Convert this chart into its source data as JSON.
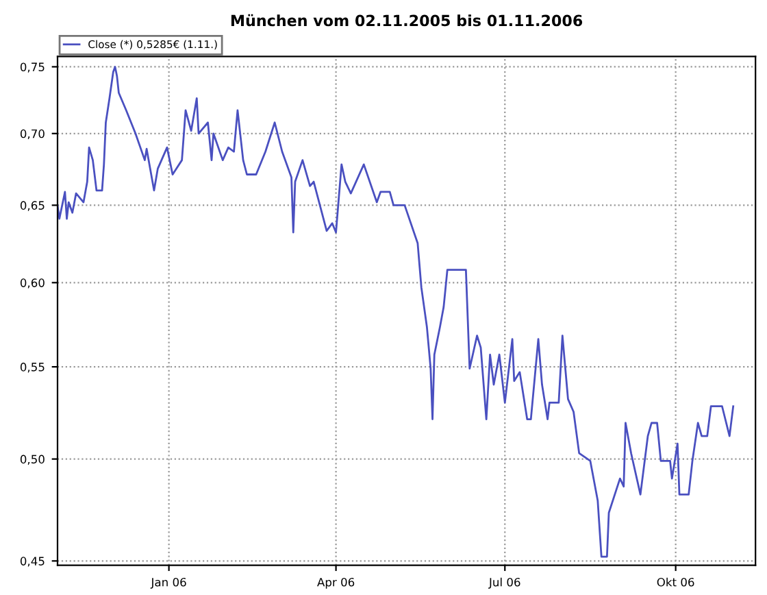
{
  "chart_data": {
    "type": "line",
    "title": "München vom 02.11.2005 bis 01.11.2006",
    "x": [
      "2005-11-02",
      "2005-11-03",
      "2005-11-06",
      "2005-11-07",
      "2005-11-08",
      "2005-11-10",
      "2005-11-12",
      "2005-11-16",
      "2005-11-18",
      "2005-11-19",
      "2005-11-21",
      "2005-11-23",
      "2005-11-26",
      "2005-11-27",
      "2005-11-28",
      "2005-11-30",
      "2005-12-02",
      "2005-12-03",
      "2005-12-04",
      "2005-12-05",
      "2005-12-09",
      "2005-12-14",
      "2005-12-19",
      "2005-12-20",
      "2005-12-24",
      "2005-12-26",
      "2005-12-31",
      "2006-01-03",
      "2006-01-08",
      "2006-01-10",
      "2006-01-13",
      "2006-01-16",
      "2006-01-17",
      "2006-01-22",
      "2006-01-24",
      "2006-01-25",
      "2006-01-30",
      "2006-02-02",
      "2006-02-05",
      "2006-02-07",
      "2006-02-10",
      "2006-02-12",
      "2006-02-17",
      "2006-02-22",
      "2006-02-27",
      "2006-03-03",
      "2006-03-08",
      "2006-03-09",
      "2006-03-10",
      "2006-03-14",
      "2006-03-18",
      "2006-03-20",
      "2006-03-27",
      "2006-03-30",
      "2006-04-01",
      "2006-04-04",
      "2006-04-06",
      "2006-04-09",
      "2006-04-16",
      "2006-04-23",
      "2006-04-25",
      "2006-04-30",
      "2006-05-02",
      "2006-05-08",
      "2006-05-15",
      "2006-05-17",
      "2006-05-20",
      "2006-05-22",
      "2006-05-23",
      "2006-05-24",
      "2006-05-27",
      "2006-05-29",
      "2006-05-31",
      "2006-06-10",
      "2006-06-12",
      "2006-06-16",
      "2006-06-18",
      "2006-06-21",
      "2006-06-23",
      "2006-06-25",
      "2006-06-28",
      "2006-07-01",
      "2006-07-05",
      "2006-07-06",
      "2006-07-09",
      "2006-07-13",
      "2006-07-15",
      "2006-07-19",
      "2006-07-21",
      "2006-07-24",
      "2006-07-25",
      "2006-07-30",
      "2006-08-01",
      "2006-08-04",
      "2006-08-07",
      "2006-08-10",
      "2006-08-16",
      "2006-08-20",
      "2006-08-22",
      "2006-08-25",
      "2006-08-26",
      "2006-09-01",
      "2006-09-03",
      "2006-09-04",
      "2006-09-07",
      "2006-09-12",
      "2006-09-16",
      "2006-09-18",
      "2006-09-21",
      "2006-09-23",
      "2006-09-28",
      "2006-09-29",
      "2006-10-02",
      "2006-10-03",
      "2006-10-08",
      "2006-10-10",
      "2006-10-13",
      "2006-10-15",
      "2006-10-18",
      "2006-10-20",
      "2006-10-26",
      "2006-10-30",
      "2006-11-01"
    ],
    "series": [
      {
        "name": "Close (*) 0,5285€ (1.11.)",
        "color": "#4a50c0",
        "values": [
          0.65,
          0.641,
          0.659,
          0.641,
          0.652,
          0.645,
          0.658,
          0.652,
          0.666,
          0.69,
          0.681,
          0.66,
          0.66,
          0.678,
          0.708,
          0.726,
          0.746,
          0.75,
          0.743,
          0.73,
          0.717,
          0.7,
          0.681,
          0.689,
          0.66,
          0.675,
          0.69,
          0.671,
          0.681,
          0.717,
          0.702,
          0.726,
          0.7,
          0.708,
          0.681,
          0.7,
          0.681,
          0.69,
          0.687,
          0.717,
          0.681,
          0.671,
          0.671,
          0.687,
          0.708,
          0.687,
          0.669,
          0.632,
          0.666,
          0.681,
          0.663,
          0.666,
          0.633,
          0.638,
          0.632,
          0.678,
          0.666,
          0.658,
          0.678,
          0.652,
          0.659,
          0.659,
          0.65,
          0.65,
          0.625,
          0.597,
          0.573,
          0.549,
          0.521,
          0.557,
          0.573,
          0.585,
          0.608,
          0.608,
          0.549,
          0.568,
          0.561,
          0.521,
          0.557,
          0.54,
          0.557,
          0.53,
          0.566,
          0.542,
          0.547,
          0.521,
          0.521,
          0.566,
          0.54,
          0.521,
          0.53,
          0.53,
          0.568,
          0.532,
          0.525,
          0.503,
          0.499,
          0.479,
          0.452,
          0.452,
          0.473,
          0.49,
          0.486,
          0.519,
          0.503,
          0.482,
          0.512,
          0.519,
          0.519,
          0.499,
          0.499,
          0.49,
          0.508,
          0.482,
          0.482,
          0.499,
          0.519,
          0.512,
          0.512,
          0.528,
          0.528,
          0.512,
          0.528
        ]
      }
    ],
    "xlim": [
      "2005-11-02",
      "2006-11-13"
    ],
    "xticks": [
      {
        "value": "2006-01-01",
        "label": "Jan 06"
      },
      {
        "value": "2006-04-01",
        "label": "Apr 06"
      },
      {
        "value": "2006-07-01",
        "label": "Jul 06"
      },
      {
        "value": "2006-10-01",
        "label": "Okt 06"
      }
    ],
    "log": "y",
    "ylim": [
      0.448,
      0.758
    ],
    "yticks": [
      {
        "value": 0.45,
        "label": "0,45"
      },
      {
        "value": 0.5,
        "label": "0,50"
      },
      {
        "value": 0.55,
        "label": "0,55"
      },
      {
        "value": 0.6,
        "label": "0,60"
      },
      {
        "value": 0.65,
        "label": "0,65"
      },
      {
        "value": 0.7,
        "label": "0,70"
      },
      {
        "value": 0.75,
        "label": "0,75"
      }
    ],
    "grid": true,
    "legend": "top left",
    "marker": "none",
    "line_style": "solid"
  }
}
